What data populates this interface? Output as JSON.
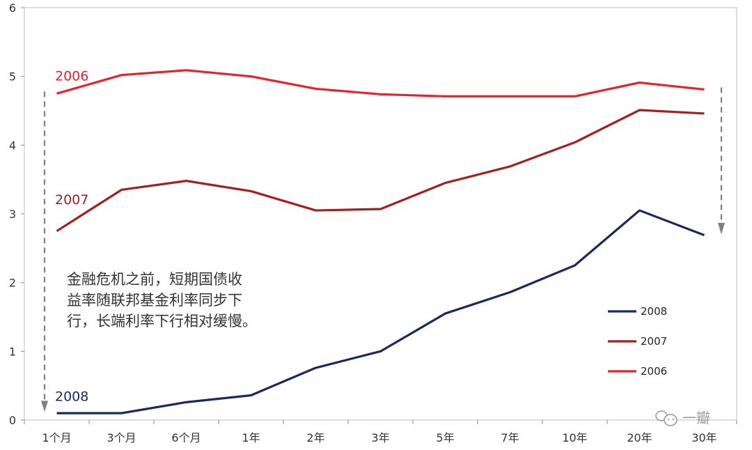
{
  "chart_data": {
    "type": "line",
    "categories": [
      "1个月",
      "3个月",
      "6个月",
      "1年",
      "2年",
      "3年",
      "5年",
      "7年",
      "10年",
      "20年",
      "30年"
    ],
    "ylim": [
      0,
      6
    ],
    "yticks": [
      "0",
      "1",
      "2",
      "3",
      "4",
      "5",
      "6"
    ],
    "series": [
      {
        "name": "2008",
        "color": "#1a2a5e",
        "values": [
          0.1,
          0.1,
          0.26,
          0.36,
          0.76,
          1.0,
          1.55,
          1.86,
          2.25,
          3.05,
          2.69
        ]
      },
      {
        "name": "2007",
        "color": "#a51f1f",
        "values": [
          2.75,
          3.35,
          3.48,
          3.33,
          3.05,
          3.07,
          3.45,
          3.69,
          4.04,
          4.51,
          4.46
        ]
      },
      {
        "name": "2006",
        "color": "#e8212b",
        "values": [
          4.75,
          5.02,
          5.09,
          5.0,
          4.82,
          4.74,
          4.71,
          4.71,
          4.71,
          4.91,
          4.81
        ]
      }
    ],
    "series_labels": [
      {
        "text": "2006",
        "color": "#e8212b"
      },
      {
        "text": "2007",
        "color": "#a51f1f"
      },
      {
        "text": "2008",
        "color": "#1a2a5e"
      }
    ],
    "annotation": [
      "金融危机之前，短期国债收",
      "益率随联邦基金利率同步下",
      "行，长端利率下行相对缓慢。"
    ],
    "legend": {
      "placement": "bottom-right",
      "entries": [
        "2008",
        "2007",
        "2006"
      ]
    },
    "grid": false
  },
  "watermark": "一瓣"
}
